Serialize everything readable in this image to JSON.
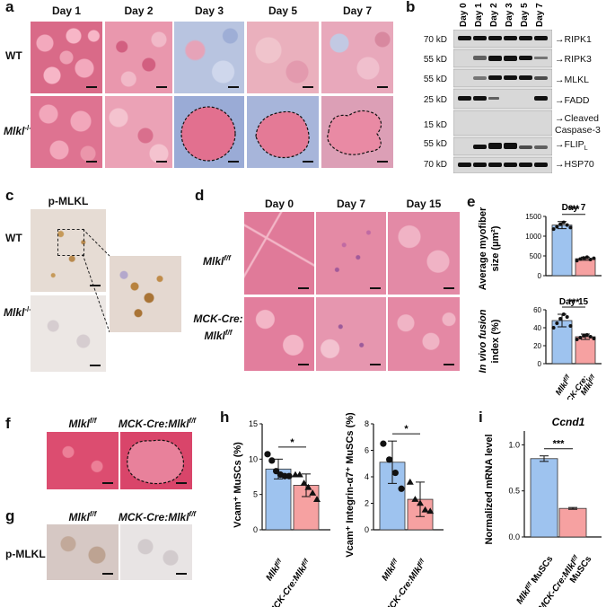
{
  "colors": {
    "he_pink": "#e2768f",
    "he_dense": "#d94f76",
    "blue_infiltrate": "#8ea2cf",
    "ihc_bg": "#e7ddd6",
    "bar_blue": "#9ec3ef",
    "bar_red": "#f6a1a1"
  },
  "panel_a": {
    "label": "a",
    "days": [
      "Day 1",
      "Day 2",
      "Day 3",
      "Day 5",
      "Day 7"
    ],
    "row_wt": "WT",
    "row_ko": "Mlkl",
    "row_ko_sup": "-/-"
  },
  "panel_b": {
    "label": "b",
    "days": [
      "Day 0",
      "Day 1",
      "Day 2",
      "Day 3",
      "Day 5",
      "Day 7"
    ],
    "mw": [
      "70 kD",
      "55 kD",
      "55 kD",
      "25 kD",
      "15 kD",
      "55 kD",
      "70 kD"
    ],
    "proteins": [
      "RIPK1",
      "RIPK3",
      "MLKL",
      "FADD",
      "Cleaved Caspase-3",
      "FLIP",
      "HSP70"
    ],
    "flip_sub": "L"
  },
  "panel_c": {
    "label": "c",
    "title": "p-MLKL",
    "row_wt": "WT",
    "row_ko": "Mlkl",
    "row_ko_sup": "-/-"
  },
  "panel_d": {
    "label": "d",
    "days": [
      "Day 0",
      "Day 7",
      "Day 15"
    ],
    "row1": "Mlkl",
    "row1_sup": "f/f",
    "row2_a": "MCK-Cre:",
    "row2_b": "Mlkl",
    "row2_sup": "f/f"
  },
  "panel_e": {
    "label": "e",
    "top_title": "Day 7",
    "top_ylabel_1": "Average myofiber",
    "top_ylabel_2": "size (µm²)",
    "top_sig": "***",
    "top_yticks": [
      "0",
      "500",
      "1000",
      "1500"
    ],
    "bottom_title": "Day 15",
    "bottom_ylabel_1": "In vivo fusion",
    "bottom_ylabel_2": "index (%)",
    "bottom_sig": "***",
    "bottom_yticks": [
      "0",
      "20",
      "40",
      "60"
    ],
    "x1": "Mlkl",
    "x1_sup": "f/f",
    "x2_a": "MCK-Cre;",
    "x2_b": "Mlkl",
    "x2_sup": "f/f"
  },
  "panel_f": {
    "label": "f",
    "col1": "Mlkl",
    "col1_sup": "f/f",
    "col2": "MCK-Cre:Mlkl",
    "col2_sup": "f/f"
  },
  "panel_g": {
    "label": "g",
    "row": "p-MLKL",
    "col1": "Mlkl",
    "col1_sup": "f/f",
    "col2": "MCK-Cre:Mlkl",
    "col2_sup": "f/f"
  },
  "panel_h": {
    "label": "h",
    "left_ylabel": "Vcam⁺ MuSCs (%)",
    "left_sig": "*",
    "left_yticks": [
      "0",
      "5",
      "10",
      "15"
    ],
    "right_ylabel": "Vcam⁺ Integrin-α7⁺ MuSCs (%)",
    "right_sig": "*",
    "right_yticks": [
      "0",
      "2",
      "4",
      "6",
      "8"
    ],
    "x1": "Mlkl",
    "x1_sup": "f/f",
    "x2": "MCK-Cre:Mlkl",
    "x2_sup": "f/f"
  },
  "panel_i": {
    "label": "i",
    "title": "Ccnd1",
    "ylabel": "Normalized mRNA level",
    "sig": "***",
    "yticks": [
      "0.0",
      "0.5",
      "1.0"
    ],
    "x1_a": "Mlkl",
    "x1_sup": "f/f",
    "x1_b": " MuSCs",
    "x2_a": "MCK-Cre:Mlkl",
    "x2_sup": "f/f",
    "x2_b": "MuSCs"
  },
  "chart_data": [
    {
      "type": "bar",
      "panel": "e-top",
      "title": "Day 7",
      "ylabel": "Average myofiber size (µm²)",
      "categories": [
        "Mlkl f/f",
        "MCK-Cre;Mlkl f/f"
      ],
      "values": [
        1280,
        430
      ],
      "errors": [
        90,
        40
      ],
      "points": [
        [
          1180,
          1240,
          1300,
          1350,
          1280,
          1220
        ],
        [
          380,
          420,
          450,
          470,
          410,
          440
        ]
      ],
      "ylim": [
        0,
        1500
      ],
      "significance": "***"
    },
    {
      "type": "bar",
      "panel": "e-bottom",
      "title": "Day 15",
      "ylabel": "In vivo fusion index (%)",
      "categories": [
        "Mlkl f/f",
        "MCK-Cre;Mlkl f/f"
      ],
      "values": [
        48,
        30
      ],
      "errors": [
        7,
        3
      ],
      "points": [
        [
          40,
          45,
          50,
          55,
          52,
          42
        ],
        [
          27,
          29,
          31,
          32,
          30,
          28
        ]
      ],
      "ylim": [
        0,
        60
      ],
      "significance": "***"
    },
    {
      "type": "bar",
      "panel": "h-left",
      "ylabel": "Vcam⁺ MuSCs (%)",
      "categories": [
        "Mlkl f/f",
        "MCK-Cre:Mlkl f/f"
      ],
      "values": [
        8.6,
        6.3
      ],
      "errors": [
        1.4,
        1.6
      ],
      "points": [
        [
          10.7,
          9.8,
          8.3,
          7.8,
          7.6,
          7.6
        ],
        [
          7.8,
          7.8,
          6.6,
          6.0,
          5.2,
          4.3
        ]
      ],
      "ylim": [
        0,
        15
      ],
      "significance": "*"
    },
    {
      "type": "bar",
      "panel": "h-right",
      "ylabel": "Vcam⁺ Integrin-α7⁺ MuSCs (%)",
      "categories": [
        "Mlkl f/f",
        "MCK-Cre:Mlkl f/f"
      ],
      "values": [
        5.1,
        2.3
      ],
      "errors": [
        1.6,
        1.3
      ],
      "points": [
        [
          6.5,
          5.3,
          4.3,
          3.1
        ],
        [
          3.6,
          2.3,
          2.0,
          1.5,
          1.4
        ]
      ],
      "ylim": [
        0,
        8
      ],
      "significance": "*"
    },
    {
      "type": "bar",
      "panel": "i",
      "title": "Ccnd1",
      "ylabel": "Normalized mRNA level",
      "categories": [
        "Mlkl f/f MuSCs",
        "MCK-Cre:Mlkl f/f MuSCs"
      ],
      "values": [
        0.85,
        0.31
      ],
      "errors": [
        0.03,
        0.01
      ],
      "ylim": [
        0,
        1.15
      ],
      "significance": "***"
    }
  ]
}
